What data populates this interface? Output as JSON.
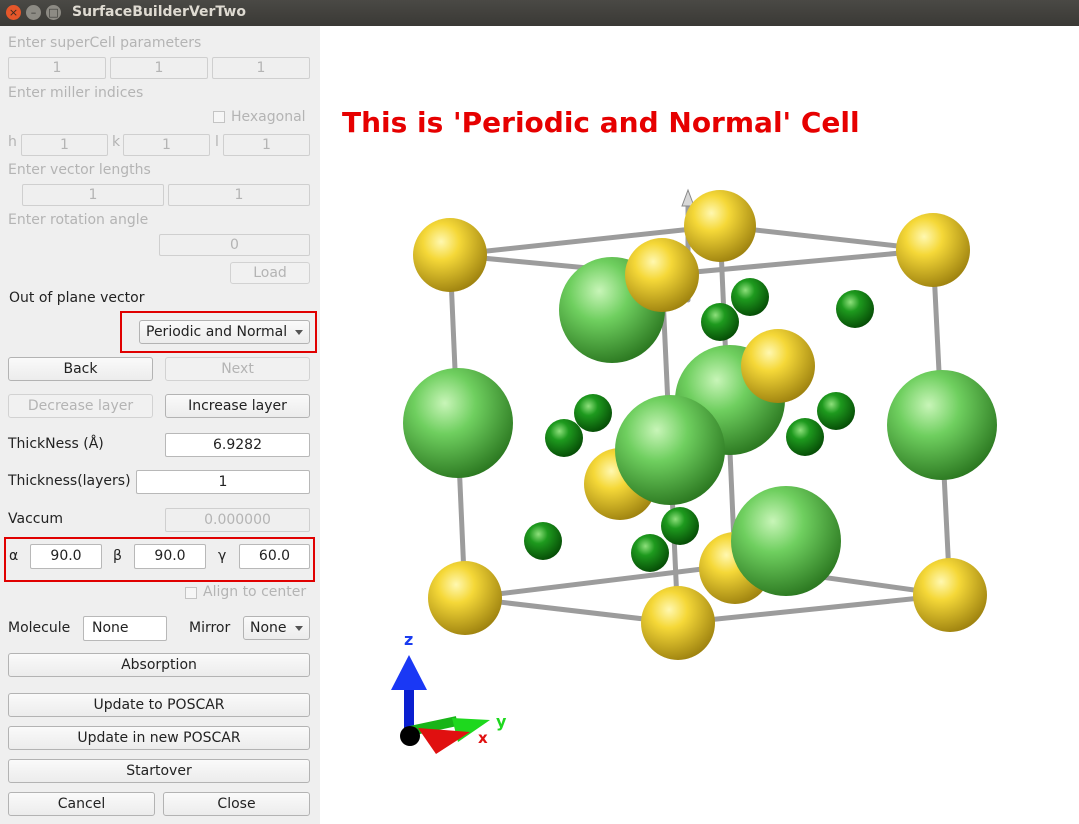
{
  "window": {
    "title": "SurfaceBuilderVerTwo",
    "close_glyph": "×",
    "minimize_glyph": "–",
    "maximize_glyph": "□"
  },
  "panel": {
    "supercell_label": "Enter superCell parameters",
    "supercell_values": [
      "1",
      "1",
      "1"
    ],
    "miller_label": "Enter miller indices",
    "hexagonal_label": "Hexagonal",
    "h_label": "h",
    "h_value": "1",
    "k_label": "k",
    "k_value": "1",
    "l_label": "l",
    "l_value": "1",
    "vector_label": "Enter vector lengths",
    "vector_values": [
      "1",
      "1"
    ],
    "rotation_label": "Enter rotation angle",
    "rotation_value": "0",
    "load_label": "Load",
    "out_of_plane_label": "Out of plane vector",
    "out_of_plane_selected": "Periodic and Normal",
    "back_label": "Back",
    "next_label": "Next",
    "decrease_label": "Decrease layer",
    "increase_label": "Increase layer",
    "thickness_label": "ThickNess (Å)",
    "thickness_value": "6.9282",
    "layers_label": "Thickness(layers)",
    "layers_value": "1",
    "vaccum_label": "Vaccum",
    "vaccum_value": "0.000000",
    "alpha_label": "α",
    "alpha_value": "90.0",
    "beta_label": "β",
    "beta_value": "90.0",
    "gamma_label": "γ",
    "gamma_value": "60.0",
    "align_label": "Align to center",
    "molecule_label": "Molecule",
    "molecule_value": "None",
    "mirror_label": "Mirror",
    "mirror_value": "None",
    "absorption_label": "Absorption",
    "update_poscar_label": "Update to POSCAR",
    "update_new_poscar_label": "Update in new POSCAR",
    "startover_label": "Startover",
    "cancel_label": "Cancel",
    "close_label": "Close"
  },
  "viewer": {
    "heading": "This is 'Periodic and Normal' Cell",
    "axis_z": "z",
    "axis_y": "y",
    "axis_x": "x",
    "colors": {
      "yellow_atom": "#f2d230",
      "large_green_atom": "#6fcf5f",
      "small_green_atom": "#1e9a1e",
      "bond": "#bdbdbd",
      "highlight": "#e00000"
    }
  }
}
